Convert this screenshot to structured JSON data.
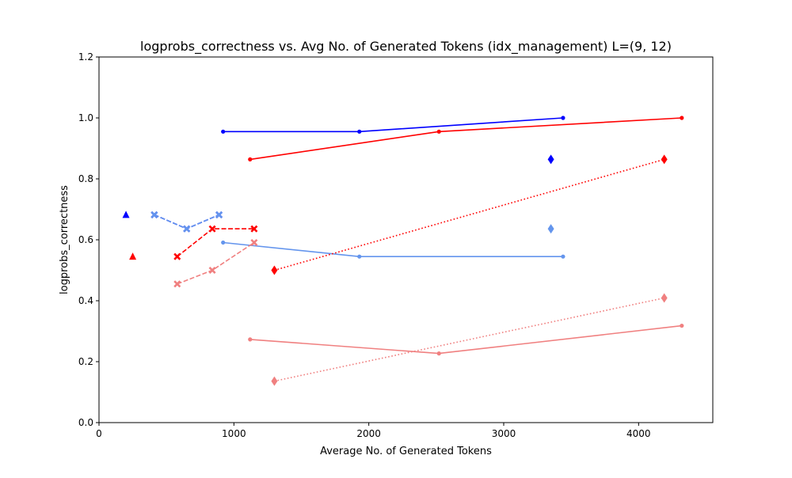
{
  "chart_data": {
    "type": "line",
    "title": "logprobs_correctness vs. Avg No. of Generated Tokens (idx_management) L=(9, 12)",
    "xlabel": "Average No. of Generated Tokens",
    "ylabel": "logprobs_correctness",
    "xlim": [
      0,
      4550
    ],
    "ylim": [
      0.0,
      1.2
    ],
    "xticks": [
      0,
      1000,
      2000,
      3000,
      4000
    ],
    "yticks": [
      0.0,
      0.2,
      0.4,
      0.6,
      0.8,
      1.0,
      1.2
    ],
    "xtick_labels": [
      "0",
      "1000",
      "2000",
      "3000",
      "4000"
    ],
    "ytick_labels": [
      "0.0",
      "0.2",
      "0.4",
      "0.6",
      "0.8",
      "1.0",
      "1.2"
    ],
    "grid": false,
    "series": [
      {
        "color": "#0000ff",
        "line": "solid",
        "marker": "dot",
        "points": [
          [
            920,
            0.955
          ],
          [
            1930,
            0.955
          ],
          [
            3440,
            1.0
          ]
        ]
      },
      {
        "color": "#ff0000",
        "line": "solid",
        "marker": "dot",
        "points": [
          [
            1120,
            0.864
          ],
          [
            2520,
            0.955
          ],
          [
            4320,
            1.0
          ]
        ]
      },
      {
        "color": "#6495ed",
        "line": "solid",
        "marker": "dot",
        "points": [
          [
            920,
            0.591
          ],
          [
            1930,
            0.545
          ],
          [
            3440,
            0.545
          ]
        ]
      },
      {
        "color": "#f08080",
        "line": "solid",
        "marker": "dot",
        "points": [
          [
            1120,
            0.273
          ],
          [
            2520,
            0.227
          ],
          [
            4320,
            0.318
          ]
        ]
      },
      {
        "color": "#ff0000",
        "line": "dotted",
        "marker": "diamond",
        "points": [
          [
            1300,
            0.5
          ],
          [
            4190,
            0.864
          ]
        ]
      },
      {
        "color": "#f08080",
        "line": "dotted",
        "marker": "diamond",
        "points": [
          [
            1300,
            0.136
          ],
          [
            4190,
            0.409
          ]
        ]
      },
      {
        "color": "#0000ff",
        "line": "none",
        "marker": "diamond",
        "points": [
          [
            3350,
            0.864
          ]
        ]
      },
      {
        "color": "#6495ed",
        "line": "none",
        "marker": "diamond",
        "points": [
          [
            3350,
            0.636
          ]
        ]
      },
      {
        "color": "#0000ff",
        "line": "dashed",
        "marker": "x",
        "points": [
          [
            410,
            0.682
          ],
          [
            650,
            0.636
          ],
          [
            890,
            0.682
          ]
        ]
      },
      {
        "color": "#6495ed",
        "line": "dashed",
        "marker": "x",
        "points": [
          [
            410,
            0.682
          ],
          [
            650,
            0.636
          ],
          [
            890,
            0.682
          ]
        ]
      },
      {
        "color": "#ff0000",
        "line": "dashed",
        "marker": "x",
        "points": [
          [
            580,
            0.545
          ],
          [
            840,
            0.636
          ],
          [
            1150,
            0.636
          ]
        ]
      },
      {
        "color": "#f08080",
        "line": "dashed",
        "marker": "x",
        "points": [
          [
            580,
            0.455
          ],
          [
            840,
            0.5
          ],
          [
            1150,
            0.591
          ]
        ]
      },
      {
        "color": "#0000ff",
        "line": "none",
        "marker": "triangle",
        "points": [
          [
            200,
            0.682
          ]
        ]
      },
      {
        "color": "#ff0000",
        "line": "none",
        "marker": "triangle",
        "points": [
          [
            250,
            0.545
          ]
        ]
      }
    ]
  }
}
